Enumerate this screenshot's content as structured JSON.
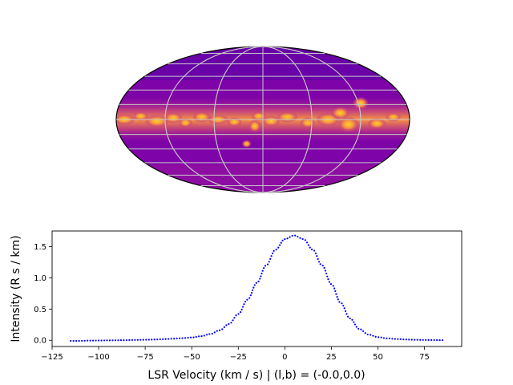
{
  "chart_data": [
    {
      "type": "heatmap",
      "projection": "mollweide",
      "colormap": "plasma",
      "grid": true,
      "title": "",
      "description_visible": "all-sky intensity map, galactic plane bright band"
    },
    {
      "type": "line",
      "xlabel": "LSR Velocity (km / s) | (l,b) = (-0.0,0.0)",
      "ylabel": "Intensity (R s / km)",
      "xlim": [
        -125,
        95
      ],
      "ylim": [
        -0.1,
        1.75
      ],
      "xticks": [
        "−125",
        "−100",
        "−75",
        "−50",
        "−25",
        "0",
        "25",
        "50",
        "75"
      ],
      "yticks": [
        "0.0",
        "0.5",
        "1.0",
        "1.5"
      ],
      "grid": false,
      "series": [
        {
          "color": "#0000ff",
          "style": "dotted",
          "x": [
            -115,
            -110,
            -105,
            -100,
            -95,
            -90,
            -85,
            -80,
            -75,
            -70,
            -65,
            -60,
            -55,
            -50,
            -45,
            -40,
            -35,
            -30,
            -25,
            -20,
            -15,
            -10,
            -5,
            0,
            5,
            10,
            15,
            20,
            25,
            30,
            35,
            40,
            45,
            50,
            55,
            60,
            65,
            70,
            75,
            80,
            85
          ],
          "values": [
            -0.01,
            -0.01,
            -0.005,
            -0.004,
            -0.002,
            0.0,
            0.002,
            0.005,
            0.008,
            0.012,
            0.018,
            0.025,
            0.034,
            0.045,
            0.065,
            0.1,
            0.16,
            0.26,
            0.42,
            0.65,
            0.92,
            1.2,
            1.45,
            1.62,
            1.68,
            1.62,
            1.45,
            1.2,
            0.9,
            0.6,
            0.35,
            0.18,
            0.09,
            0.05,
            0.03,
            0.02,
            0.012,
            0.008,
            0.005,
            0.003,
            0.001
          ]
        }
      ]
    }
  ]
}
